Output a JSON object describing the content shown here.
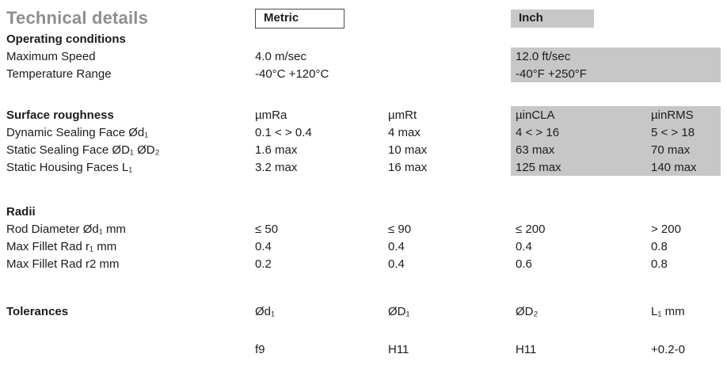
{
  "title": "Technical details",
  "unit_headers": {
    "metric": "Metric",
    "inch": "Inch"
  },
  "colors": {
    "shade": "#c7c7c7",
    "title-gray": "#8e8e8e"
  },
  "sections": {
    "operating": {
      "name": "Operating conditions",
      "rows": [
        {
          "label": "Maximum Speed",
          "metric1": "4.0 m/sec",
          "metric2": "",
          "inch1": "12.0 ft/sec",
          "inch2": ""
        },
        {
          "label": "Temperature Range",
          "metric1": "-40°C +120°C",
          "metric2": "",
          "inch1": "-40°F +250°F",
          "inch2": ""
        }
      ]
    },
    "surface": {
      "name": "Surface roughness",
      "units": {
        "metric1": "µmRa",
        "metric2": "µmRt",
        "inch1": "µinCLA",
        "inch2": "µinRMS"
      },
      "rows": [
        {
          "label": "Dynamic Sealing Face Ød₁",
          "metric1": "0.1 < > 0.4",
          "metric2": "4 max",
          "inch1": "4 < > 16",
          "inch2": "5 < > 18"
        },
        {
          "label": "Static Sealing Face ØD₁  ØD₂",
          "metric1": "1.6 max",
          "metric2": "10 max",
          "inch1": "63 max",
          "inch2": "70 max"
        },
        {
          "label": "Static Housing Faces L₁",
          "metric1": "3.2 max",
          "metric2": "16 max",
          "inch1": "125 max",
          "inch2": "140 max"
        }
      ]
    },
    "radii": {
      "name": "Radii",
      "rows": [
        {
          "label": "Rod Diameter Ød₁ mm",
          "metric1": "≤ 50",
          "metric2": "≤ 90",
          "inch1": "≤ 200",
          "inch2": "> 200"
        },
        {
          "label": "Max Fillet Rad r₁ mm",
          "metric1": "0.4",
          "metric2": "0.4",
          "inch1": "0.4",
          "inch2": "0.8"
        },
        {
          "label": "Max Fillet Rad r2 mm",
          "metric1": "0.2",
          "metric2": "0.4",
          "inch1": "0.6",
          "inch2": "0.8"
        }
      ]
    },
    "tolerances": {
      "name": "Tolerances",
      "header": {
        "metric1": "Ød₁",
        "metric2": "ØD₁",
        "inch1": "ØD₂",
        "inch2": "L₁ mm"
      },
      "values": {
        "metric1": "f9",
        "metric2": "H11",
        "inch1": "H11",
        "inch2": "+0.2-0"
      }
    }
  }
}
